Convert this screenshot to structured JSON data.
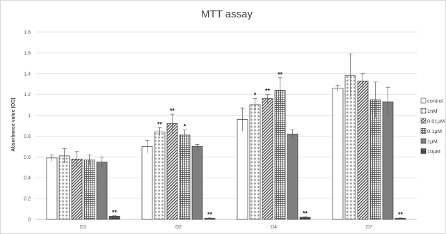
{
  "chart_data": {
    "type": "bar",
    "title": "MTT assay",
    "ylabel": "Absorbance value (OD)",
    "xlabel": "",
    "ylim": [
      0,
      1.8
    ],
    "yticks": [
      "0",
      "0.2",
      "0.4",
      "0.6",
      "0.8",
      "1",
      "1.2",
      "1.4",
      "1.6",
      "1.8"
    ],
    "grid": true,
    "legend_position": "right",
    "categories": [
      "D1",
      "D2",
      "D4",
      "D7"
    ],
    "series": [
      {
        "name": "control",
        "pattern": "solid",
        "values": [
          0.59,
          0.7,
          0.96,
          1.26
        ],
        "errors": [
          0.03,
          0.06,
          0.11,
          0.03
        ],
        "sig": [
          "",
          "",
          "",
          ""
        ]
      },
      {
        "name": "1nM",
        "pattern": "dots",
        "values": [
          0.61,
          0.84,
          1.1,
          1.38
        ],
        "errors": [
          0.07,
          0.04,
          0.06,
          0.21
        ],
        "sig": [
          "",
          "**",
          "*",
          ""
        ]
      },
      {
        "name": "0.01μM",
        "pattern": "diagonal",
        "values": [
          0.58,
          0.92,
          1.16,
          1.33
        ],
        "errors": [
          0.07,
          0.09,
          0.04,
          0.07
        ],
        "sig": [
          "",
          "**",
          "**",
          ""
        ]
      },
      {
        "name": "0.1μM",
        "pattern": "grid",
        "values": [
          0.57,
          0.81,
          1.24,
          1.15
        ],
        "errors": [
          0.05,
          0.05,
          0.12,
          0.17
        ],
        "sig": [
          "",
          "*",
          "**",
          ""
        ]
      },
      {
        "name": "1μM",
        "pattern": "darkgray",
        "values": [
          0.55,
          0.7,
          0.82,
          1.13
        ],
        "errors": [
          0.05,
          0.02,
          0.04,
          0.14
        ],
        "sig": [
          "",
          "",
          "",
          ""
        ]
      },
      {
        "name": "10μM",
        "pattern": "darkdots",
        "values": [
          0.03,
          0.01,
          0.02,
          0.01
        ],
        "errors": [
          0.005,
          0.004,
          0.005,
          0.004
        ],
        "sig": [
          "**",
          "**",
          "**",
          "**"
        ]
      }
    ]
  }
}
